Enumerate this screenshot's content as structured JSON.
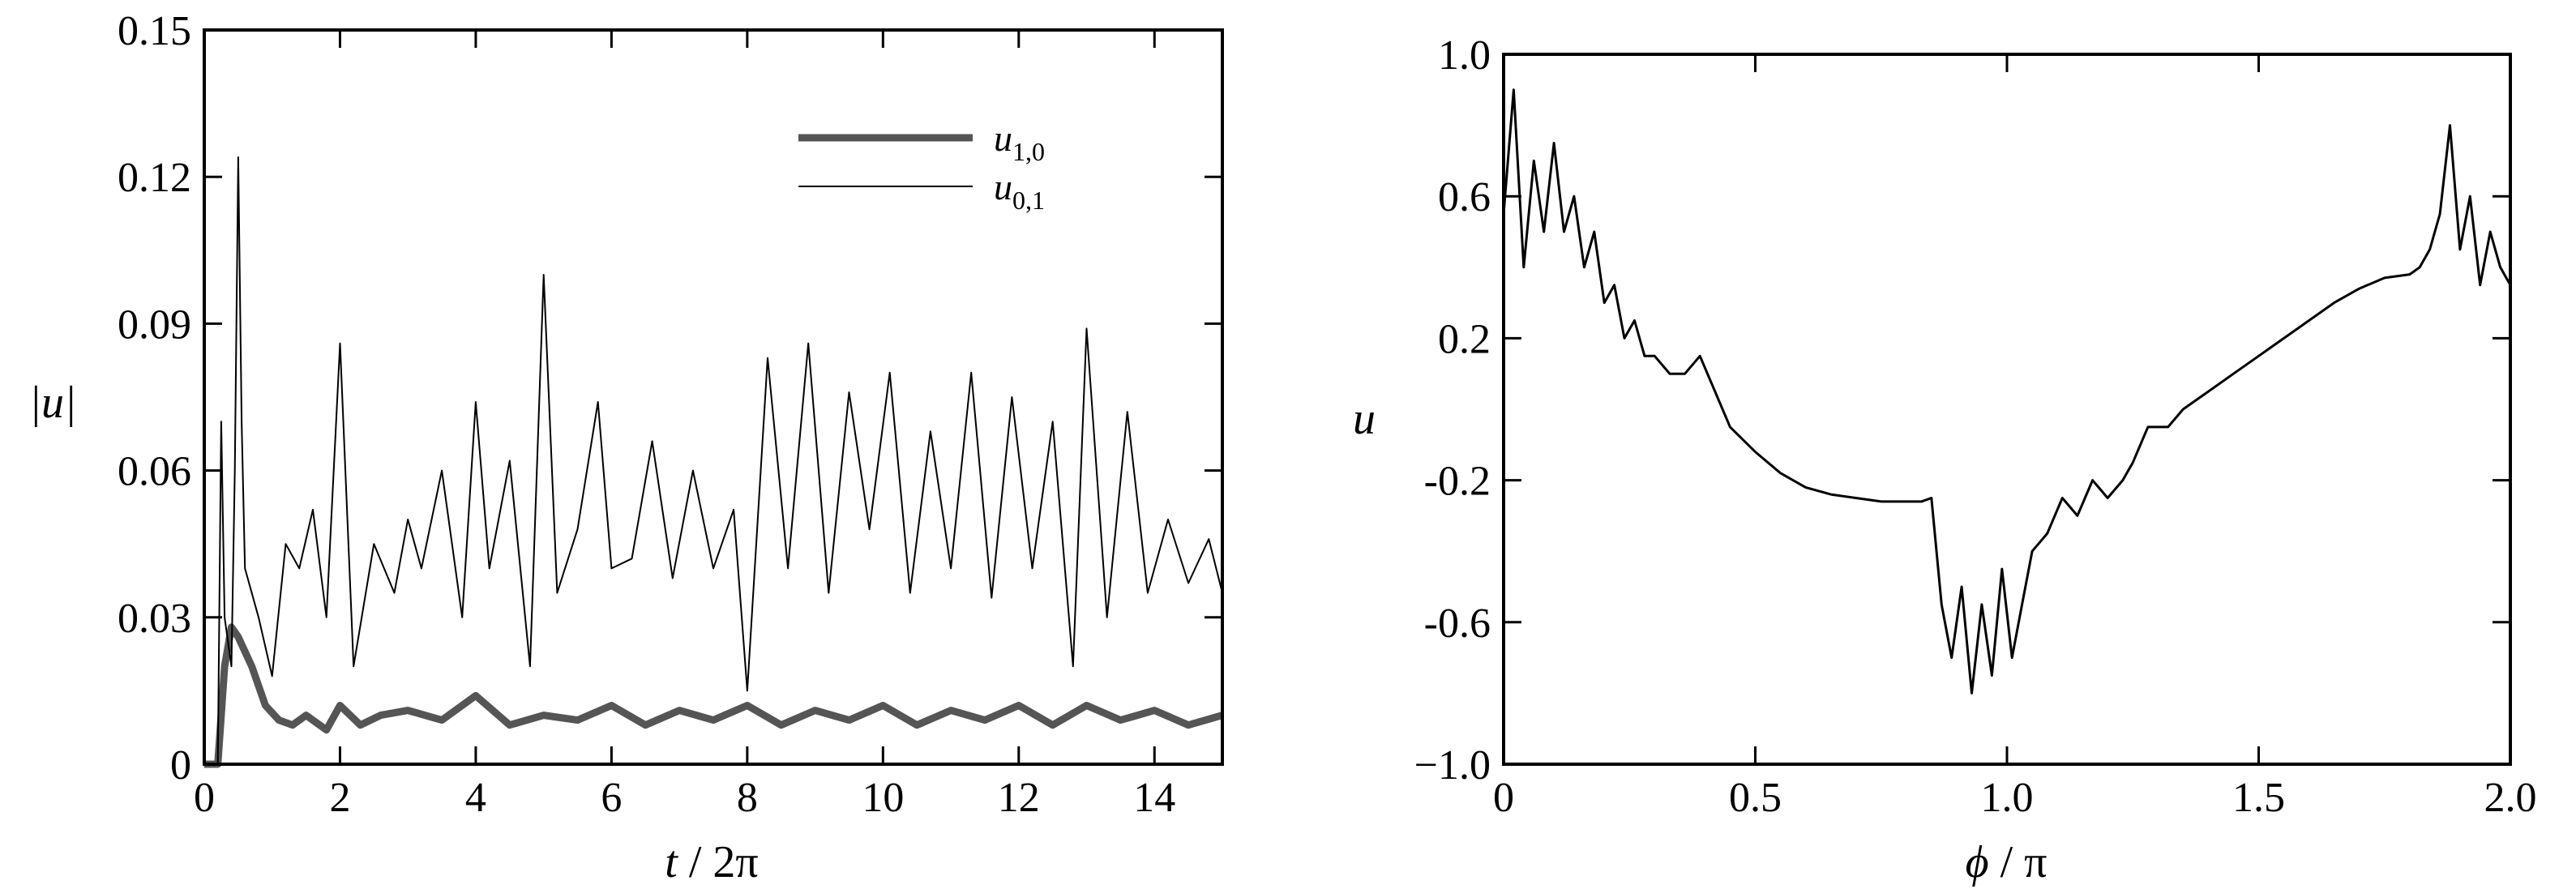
{
  "chart_data": [
    {
      "type": "line",
      "xlabel_italic": "t",
      "xlabel_rest": " / 2π",
      "ylabel": "|u|",
      "xlim": [
        0,
        15
      ],
      "ylim": [
        0,
        0.15
      ],
      "xticks": [
        0,
        2,
        4,
        6,
        8,
        10,
        12,
        14
      ],
      "xtick_labels": [
        "0",
        "2",
        "4",
        "6",
        "8",
        "10",
        "12",
        "14"
      ],
      "yticks": [
        0,
        0.03,
        0.06,
        0.09,
        0.12,
        0.15
      ],
      "ytick_labels": [
        "0",
        "0.03",
        "0.06",
        "0.09",
        "0.12",
        "0.15"
      ],
      "grid": false,
      "legend_position": "top-right",
      "series": [
        {
          "name_base": "u",
          "name_sub": "1,0",
          "line": "thick",
          "color": "#555555",
          "x": [
            0,
            0.2,
            0.3,
            0.4,
            0.5,
            0.7,
            0.9,
            1.1,
            1.3,
            1.5,
            1.8,
            2,
            2.3,
            2.6,
            3,
            3.5,
            4,
            4.5,
            5,
            5.5,
            6,
            6.5,
            7,
            7.5,
            8,
            8.5,
            9,
            9.5,
            10,
            10.5,
            11,
            11.5,
            12,
            12.5,
            13,
            13.5,
            14,
            14.5,
            15
          ],
          "y": [
            0,
            0.0,
            0.02,
            0.028,
            0.026,
            0.02,
            0.012,
            0.009,
            0.008,
            0.01,
            0.007,
            0.012,
            0.008,
            0.01,
            0.011,
            0.009,
            0.014,
            0.008,
            0.01,
            0.009,
            0.012,
            0.008,
            0.011,
            0.009,
            0.012,
            0.008,
            0.011,
            0.009,
            0.012,
            0.008,
            0.011,
            0.009,
            0.012,
            0.008,
            0.012,
            0.009,
            0.011,
            0.008,
            0.01
          ]
        },
        {
          "name_base": "u",
          "name_sub": "0,1",
          "line": "thin",
          "color": "#000000",
          "x": [
            0,
            0.2,
            0.25,
            0.3,
            0.4,
            0.45,
            0.5,
            0.55,
            0.6,
            0.8,
            1.0,
            1.2,
            1.4,
            1.6,
            1.8,
            2.0,
            2.2,
            2.5,
            2.8,
            3.0,
            3.2,
            3.5,
            3.8,
            4.0,
            4.2,
            4.5,
            4.8,
            5.0,
            5.2,
            5.5,
            5.8,
            6.0,
            6.3,
            6.6,
            6.9,
            7.2,
            7.5,
            7.8,
            8.0,
            8.3,
            8.6,
            8.9,
            9.2,
            9.5,
            9.8,
            10.1,
            10.4,
            10.7,
            11.0,
            11.3,
            11.6,
            11.9,
            12.2,
            12.5,
            12.8,
            13.0,
            13.3,
            13.6,
            13.9,
            14.2,
            14.5,
            14.8,
            15.0
          ],
          "y": [
            0,
            0.0,
            0.07,
            0.03,
            0.02,
            0.06,
            0.124,
            0.07,
            0.04,
            0.03,
            0.018,
            0.045,
            0.04,
            0.052,
            0.03,
            0.086,
            0.02,
            0.045,
            0.035,
            0.05,
            0.04,
            0.06,
            0.03,
            0.074,
            0.04,
            0.062,
            0.02,
            0.1,
            0.035,
            0.048,
            0.074,
            0.04,
            0.042,
            0.066,
            0.038,
            0.06,
            0.04,
            0.052,
            0.015,
            0.083,
            0.04,
            0.086,
            0.035,
            0.076,
            0.048,
            0.08,
            0.035,
            0.068,
            0.04,
            0.08,
            0.034,
            0.075,
            0.04,
            0.07,
            0.02,
            0.089,
            0.03,
            0.072,
            0.035,
            0.05,
            0.037,
            0.046,
            0.035
          ]
        }
      ]
    },
    {
      "type": "line",
      "xlabel_italic": "ϕ",
      "xlabel_rest": " / π",
      "ylabel": "u",
      "xlim": [
        0,
        2.0
      ],
      "ylim": [
        -1.0,
        1.0
      ],
      "xticks": [
        0,
        0.5,
        1.0,
        1.5,
        2.0
      ],
      "xtick_labels": [
        "0",
        "0.5",
        "1.0",
        "1.5",
        "2.0"
      ],
      "yticks": [
        -1.0,
        -0.6,
        -0.2,
        0.2,
        0.6,
        1.0
      ],
      "ytick_labels": [
        "−1.0",
        "-0.6",
        "-0.2",
        "0.2",
        "0.6",
        "1.0"
      ],
      "grid": false,
      "series": [
        {
          "line": "medium",
          "color": "#000000",
          "x": [
            0,
            0.02,
            0.04,
            0.06,
            0.08,
            0.1,
            0.12,
            0.14,
            0.16,
            0.18,
            0.2,
            0.22,
            0.24,
            0.26,
            0.28,
            0.3,
            0.33,
            0.36,
            0.39,
            0.42,
            0.45,
            0.5,
            0.55,
            0.6,
            0.65,
            0.7,
            0.75,
            0.8,
            0.83,
            0.85,
            0.87,
            0.89,
            0.91,
            0.93,
            0.95,
            0.97,
            0.99,
            1.01,
            1.03,
            1.05,
            1.08,
            1.11,
            1.14,
            1.17,
            1.2,
            1.23,
            1.25,
            1.28,
            1.3,
            1.32,
            1.35,
            1.4,
            1.45,
            1.5,
            1.55,
            1.6,
            1.65,
            1.7,
            1.75,
            1.8,
            1.82,
            1.84,
            1.86,
            1.88,
            1.9,
            1.92,
            1.94,
            1.96,
            1.98,
            2.0
          ],
          "y": [
            0.55,
            0.9,
            0.4,
            0.7,
            0.5,
            0.75,
            0.5,
            0.6,
            0.4,
            0.5,
            0.3,
            0.35,
            0.2,
            0.25,
            0.15,
            0.15,
            0.1,
            0.1,
            0.15,
            0.05,
            -0.05,
            -0.12,
            -0.18,
            -0.22,
            -0.24,
            -0.25,
            -0.26,
            -0.26,
            -0.26,
            -0.25,
            -0.55,
            -0.7,
            -0.5,
            -0.8,
            -0.55,
            -0.75,
            -0.45,
            -0.7,
            -0.55,
            -0.4,
            -0.35,
            -0.25,
            -0.3,
            -0.2,
            -0.25,
            -0.2,
            -0.15,
            -0.05,
            -0.05,
            -0.05,
            0.0,
            0.05,
            0.1,
            0.15,
            0.2,
            0.25,
            0.3,
            0.34,
            0.37,
            0.38,
            0.4,
            0.45,
            0.55,
            0.8,
            0.45,
            0.6,
            0.35,
            0.5,
            0.4,
            0.35
          ]
        }
      ]
    }
  ]
}
